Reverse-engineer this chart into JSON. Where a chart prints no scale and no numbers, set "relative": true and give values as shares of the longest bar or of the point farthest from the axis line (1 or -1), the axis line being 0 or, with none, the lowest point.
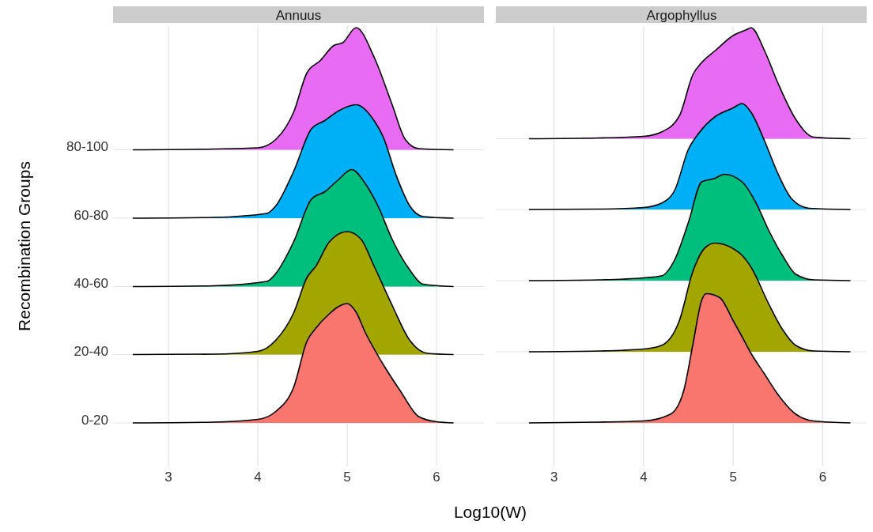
{
  "chart_data": [
    {
      "type": "area",
      "title": "Annuus",
      "xlabel": "Log10(W)",
      "ylabel": "Recombination Groups",
      "relative": true,
      "xlim": [
        2.38,
        6.53
      ],
      "xticks": [
        3,
        4,
        5,
        6
      ],
      "grid": true,
      "series": [
        {
          "name": "0-20",
          "color": "#f8766d",
          "x": [
            2.6,
            3.5,
            4.0,
            4.2,
            4.4,
            4.55,
            4.65,
            4.8,
            4.9,
            5.0,
            5.1,
            5.2,
            5.4,
            5.6,
            5.8,
            6.0,
            6.19
          ],
          "values": [
            0,
            0.002,
            0.009,
            0.029,
            0.09,
            0.207,
            0.24,
            0.276,
            0.294,
            0.302,
            0.28,
            0.23,
            0.149,
            0.079,
            0.016,
            0.003,
            0
          ]
        },
        {
          "name": "20-40",
          "color": "#a3a500",
          "x": [
            2.6,
            3.5,
            4.0,
            4.2,
            4.4,
            4.55,
            4.65,
            4.8,
            5.0,
            5.15,
            5.3,
            5.5,
            5.7,
            5.9,
            6.19
          ],
          "values": [
            0.173,
            0.174,
            0.181,
            0.209,
            0.278,
            0.368,
            0.397,
            0.458,
            0.484,
            0.466,
            0.397,
            0.299,
            0.209,
            0.176,
            0.173
          ]
        },
        {
          "name": "40-60",
          "color": "#00bf7d",
          "x": [
            2.6,
            3.5,
            4.1,
            4.2,
            4.4,
            4.6,
            4.75,
            4.9,
            5.05,
            5.2,
            5.35,
            5.5,
            5.7,
            5.85,
            6.19
          ],
          "values": [
            0.345,
            0.347,
            0.358,
            0.378,
            0.458,
            0.566,
            0.585,
            0.615,
            0.641,
            0.606,
            0.546,
            0.466,
            0.387,
            0.351,
            0.345
          ]
        },
        {
          "name": "60-80",
          "color": "#00b0f6",
          "x": [
            2.6,
            3.5,
            4.1,
            4.2,
            4.4,
            4.6,
            4.75,
            4.9,
            5.1,
            5.3,
            5.4,
            5.55,
            5.7,
            5.85,
            6.19
          ],
          "values": [
            0.518,
            0.52,
            0.53,
            0.549,
            0.636,
            0.744,
            0.765,
            0.789,
            0.805,
            0.765,
            0.725,
            0.625,
            0.549,
            0.522,
            0.518
          ]
        },
        {
          "name": "80-100",
          "color": "#e76bf3",
          "x": [
            2.6,
            3.5,
            4.0,
            4.2,
            4.4,
            4.55,
            4.7,
            4.85,
            4.95,
            5.1,
            5.3,
            5.5,
            5.65,
            5.8,
            6.19
          ],
          "values": [
            0.691,
            0.693,
            0.696,
            0.717,
            0.786,
            0.886,
            0.917,
            0.955,
            0.962,
            1,
            0.926,
            0.807,
            0.717,
            0.694,
            0.691
          ]
        }
      ]
    },
    {
      "type": "area",
      "title": "Argophyllus",
      "relative": true,
      "xlim": [
        2.35,
        6.5
      ],
      "xticks": [
        3,
        4,
        5,
        6
      ],
      "grid": true,
      "series": [
        {
          "color": "#f8766d",
          "x": [
            2.72,
            3.5,
            4.0,
            4.3,
            4.45,
            4.55,
            4.65,
            4.7,
            4.85,
            5.0,
            5.1,
            5.2,
            5.35,
            5.5,
            5.7,
            5.9,
            6.31
          ],
          "values": [
            0,
            0.002,
            0.005,
            0.022,
            0.083,
            0.198,
            0.311,
            0.327,
            0.317,
            0.259,
            0.218,
            0.176,
            0.124,
            0.072,
            0.022,
            0.005,
            0
          ]
        },
        {
          "color": "#a3a500",
          "x": [
            2.72,
            3.5,
            4.0,
            4.2,
            4.4,
            4.55,
            4.7,
            4.8,
            5.0,
            5.1,
            5.2,
            5.4,
            5.55,
            5.7,
            5.9,
            6.31
          ],
          "values": [
            0.18,
            0.182,
            0.187,
            0.196,
            0.259,
            0.383,
            0.446,
            0.455,
            0.441,
            0.424,
            0.394,
            0.3,
            0.237,
            0.196,
            0.182,
            0.18
          ]
        },
        {
          "color": "#00bf7d",
          "x": [
            2.72,
            3.5,
            4.0,
            4.2,
            4.35,
            4.5,
            4.65,
            4.8,
            4.9,
            5.1,
            5.25,
            5.4,
            5.55,
            5.7,
            5.9,
            6.31
          ],
          "values": [
            0.36,
            0.362,
            0.367,
            0.372,
            0.414,
            0.507,
            0.61,
            0.619,
            0.629,
            0.61,
            0.559,
            0.486,
            0.424,
            0.376,
            0.362,
            0.36
          ]
        },
        {
          "color": "#00b0f6",
          "x": [
            2.72,
            3.5,
            4.0,
            4.2,
            4.35,
            4.5,
            4.62,
            4.8,
            5.0,
            5.1,
            5.2,
            5.35,
            5.5,
            5.65,
            5.85,
            6.31
          ],
          "values": [
            0.54,
            0.541,
            0.545,
            0.556,
            0.59,
            0.692,
            0.734,
            0.775,
            0.797,
            0.808,
            0.786,
            0.714,
            0.631,
            0.568,
            0.543,
            0.54
          ]
        },
        {
          "color": "#e76bf3",
          "x": [
            2.72,
            3.5,
            4.0,
            4.2,
            4.4,
            4.55,
            4.65,
            4.8,
            5.0,
            5.15,
            5.2,
            5.35,
            5.5,
            5.7,
            5.9,
            6.31
          ],
          "values": [
            0.719,
            0.721,
            0.725,
            0.736,
            0.777,
            0.881,
            0.912,
            0.942,
            0.98,
            0.995,
            1,
            0.942,
            0.86,
            0.768,
            0.723,
            0.719
          ]
        }
      ]
    }
  ]
}
